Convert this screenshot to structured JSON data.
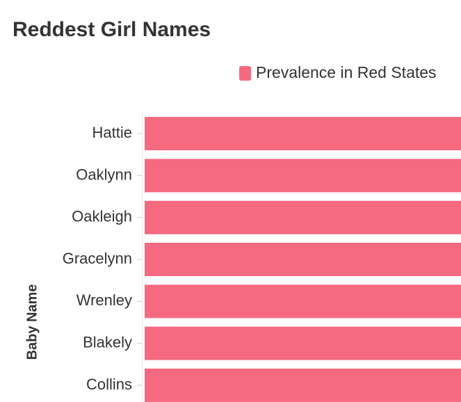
{
  "chart_data": {
    "type": "bar",
    "orientation": "horizontal",
    "title": "Reddest Girl Names",
    "y_label": "Baby Name",
    "categories": [
      "Hattie",
      "Oaklynn",
      "Oakleigh",
      "Gracelynn",
      "Wrenley",
      "Blakely",
      "Collins"
    ],
    "series": [
      {
        "name": "Prevalence in Red States",
        "color": "#f56a80",
        "values": [
          100,
          100,
          100,
          100,
          100,
          100,
          100
        ]
      }
    ]
  }
}
